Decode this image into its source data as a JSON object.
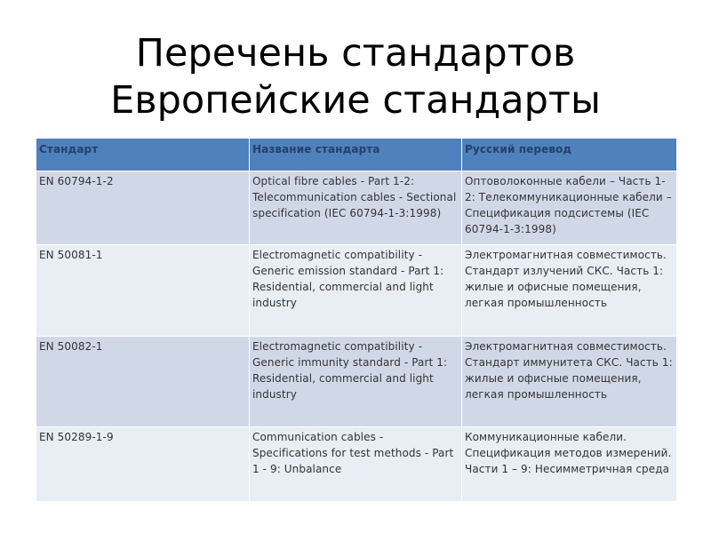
{
  "title": {
    "line1": "Перечень стандартов",
    "line2": "Европейские стандарты"
  },
  "table": {
    "headers": [
      "Стандарт",
      "Название стандарта",
      "Русский перевод"
    ],
    "rows": [
      [
        "EN 60794-1-2",
        "Optical fibre cables - Part 1-2: Telecommunication cables - Sectional specification (IEC 60794-1-3:1998)",
        "Оптоволоконные кабели – Часть 1-2: Телекоммуникационные кабели – Спецификация подсистемы (IEC 60794-1-3:1998)"
      ],
      [
        "EN 50081-1",
        "Electromagnetic compatibility - Generic emission standard - Part 1: Residential, commercial and light industry",
        "Электромагнитная совместимость. Стандарт излучений СКС. Часть 1: жилые и офисные помещения, легкая промышленность"
      ],
      [
        "EN 50082-1",
        "Electromagnetic compatibility - Generic immunity standard - Part 1: Residential, commercial and light industry",
        "Электромагнитная совместимость. Стандарт иммунитета СКС. Часть 1: жилые и офисные помещения, легкая промышленность"
      ],
      [
        "EN 50289-1-9",
        "Communication cables - Specifications for test methods - Part 1 - 9: Unbalance",
        "Коммуникационные кабели. Спецификация методов измерений. Части 1 – 9: Несимметричная среда"
      ]
    ]
  },
  "colors": {
    "header": "#4f81bd",
    "row_odd": "#d0d8e8",
    "row_even": "#e9edf4"
  }
}
